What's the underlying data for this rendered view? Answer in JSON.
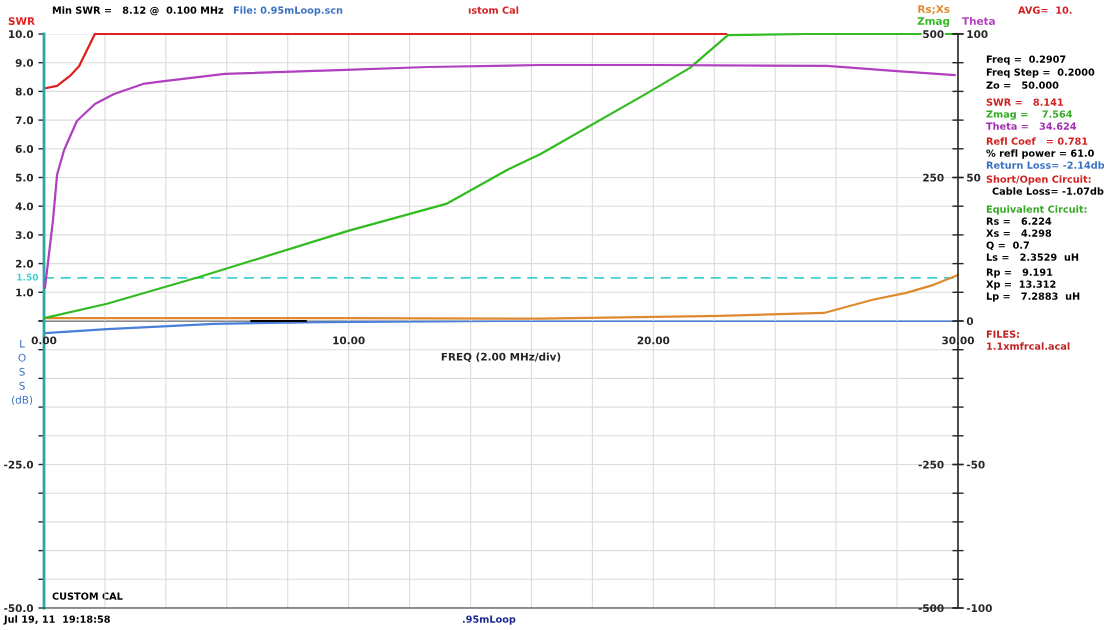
{
  "chart_data": [
    {
      "type": "line",
      "xlabel": "FREQ (2.00 MHz/div)",
      "xlim": [
        0,
        30
      ],
      "xticks": [
        {
          "value": 0,
          "label": "0.00"
        },
        {
          "value": 2,
          "label": null
        },
        {
          "value": 4,
          "label": null
        },
        {
          "value": 6,
          "label": null
        },
        {
          "value": 8,
          "label": null
        },
        {
          "value": 10,
          "label": "10.00"
        },
        {
          "value": 12,
          "label": null
        },
        {
          "value": 14,
          "label": null
        },
        {
          "value": 16,
          "label": null
        },
        {
          "value": 18,
          "label": null
        },
        {
          "value": 20,
          "label": "20.00"
        },
        {
          "value": 22,
          "label": null
        },
        {
          "value": 24,
          "label": null
        },
        {
          "value": 26,
          "label": null
        },
        {
          "value": 28,
          "label": null
        },
        {
          "value": 30,
          "label": "30.00"
        }
      ],
      "ylim": [
        0,
        10
      ],
      "yticks": [
        {
          "value": 0,
          "label": null
        },
        {
          "value": 1,
          "label": "1.0"
        },
        {
          "value": 2,
          "label": "2.0"
        },
        {
          "value": 3,
          "label": "3.0"
        },
        {
          "value": 4,
          "label": "4.0"
        },
        {
          "value": 5,
          "label": "5.0"
        },
        {
          "value": 6,
          "label": "6.0"
        },
        {
          "value": 7,
          "label": "7.0"
        },
        {
          "value": 8,
          "label": "8.0"
        },
        {
          "value": 9,
          "label": "9.0"
        },
        {
          "value": 10,
          "label": "10.0"
        }
      ],
      "y2lim": [
        0,
        500
      ],
      "y2ticks": [
        {
          "value": 50,
          "label": null
        },
        {
          "value": 100,
          "label": null
        },
        {
          "value": 150,
          "label": null
        },
        {
          "value": 200,
          "label": null
        },
        250,
        {
          "value": 300,
          "label": null
        },
        {
          "value": 350,
          "label": null
        },
        {
          "value": 400,
          "label": null
        },
        {
          "value": 450,
          "label": null
        },
        500
      ],
      "y3lim": [
        0,
        100
      ],
      "y3ticks": [
        0,
        50,
        100
      ],
      "grid": true,
      "series": [
        {
          "name": "SWR",
          "color": "#e02020",
          "axis": "y",
          "x": [
            0,
            0.43,
            0.85,
            1.15,
            1.67,
            5,
            10,
            15,
            20,
            22.4
          ],
          "values": [
            8.1,
            8.19,
            8.54,
            8.88,
            10,
            10,
            10,
            10,
            10,
            10
          ]
        },
        {
          "name": "Theta",
          "color": "#b040c0",
          "axis": "y3",
          "x": [
            0.03,
            0.29,
            0.43,
            0.66,
            1.08,
            1.67,
            2.3,
            3.25,
            3.94,
            5.94,
            9.9,
            12.6,
            16.3,
            20.0,
            25.7,
            28.0,
            29.9
          ],
          "values": [
            11.5,
            34.6,
            51,
            59.6,
            69.7,
            75.6,
            79.1,
            82.6,
            83.6,
            86.1,
            87.5,
            88.5,
            89.2,
            89.2,
            88.9,
            87.1,
            85.7
          ]
        },
        {
          "name": "Rs;Xs",
          "color": "#e08a30",
          "axis": "y2",
          "x": [
            0,
            5,
            10,
            16.3,
            22.2,
            25.6,
            27.2,
            28.3,
            29.2,
            30
          ],
          "values": [
            5,
            5,
            5,
            4,
            9,
            14,
            37,
            49,
            63,
            80
          ]
        },
        {
          "color": "#000000",
          "axis": "y2",
          "x": [
            6.8,
            8.6
          ],
          "values": [
            0,
            0
          ]
        },
        {
          "name": "Zmag",
          "color": "#33bb22",
          "axis": "y2",
          "x": [
            0,
            2.07,
            5.12,
            9.98,
            13.2,
            15.2,
            16.3,
            19.8,
            21.2,
            22.45,
            25,
            30
          ],
          "values": [
            5,
            30,
            77,
            157,
            204,
            263,
            291,
            397,
            441,
            498,
            500,
            500
          ]
        }
      ],
      "ref_lines": [
        {
          "axis": "y",
          "value": 1.5,
          "label": "1.50",
          "color": "#40d0d0",
          "line_style": "dashed"
        }
      ],
      "annotations": [
        "Min SWR =   8.12 @  0.100 MHz",
        "File: 0.95mLoop.scn",
        "ıstom Cal",
        "AVG=  10.",
        "Freq =  0.2907",
        "Freq Step =  0.2000",
        "Zo =   50.000",
        "SWR =   8.141",
        "Zmag =    7.564",
        "Theta =   34.624",
        "Refl Coef   = 0.781",
        "% refl power = 61.0",
        "Return Loss= -2.14db",
        "Short/Open Circuit:",
        "Cable Loss= -1.07db",
        "Equivalent Circuit:",
        "Rs =   6.224",
        "Xs =   4.298",
        "Q =  0.7",
        "Ls =   2.3529  uH",
        "Rp =   9.191",
        "Xp =  13.312",
        "Lp =   7.2883  uH",
        "FILES:",
        "1.1xmfrcal.acal"
      ]
    },
    {
      "type": "line",
      "ylabel": "L\nO\nS\nS\n(dB)",
      "xlim": [
        0,
        30
      ],
      "xticks": [
        0,
        2,
        4,
        6,
        8,
        10,
        12,
        14,
        16,
        18,
        20,
        22,
        24,
        26,
        28,
        30
      ],
      "tick_labels": "y",
      "ylim": [
        -50,
        0
      ],
      "yticks": [
        {
          "value": -50,
          "label": "-50.0"
        },
        {
          "value": -45,
          "label": null
        },
        {
          "value": -40,
          "label": null
        },
        {
          "value": -35,
          "label": null
        },
        {
          "value": -30,
          "label": null
        },
        {
          "value": -25,
          "label": "-25.0"
        },
        {
          "value": -20,
          "label": null
        },
        {
          "value": -15,
          "label": null
        },
        {
          "value": -10,
          "label": null
        },
        {
          "value": -5,
          "label": null
        },
        {
          "value": 0,
          "label": null
        }
      ],
      "y2lim": [
        -500,
        0
      ],
      "y2ticks": [
        -500,
        {
          "value": -450,
          "label": null
        },
        {
          "value": -400,
          "label": null
        },
        {
          "value": -350,
          "label": null
        },
        {
          "value": -300,
          "label": null
        },
        -250,
        {
          "value": -200,
          "label": null
        },
        {
          "value": -150,
          "label": null
        },
        {
          "value": -100,
          "label": null
        },
        {
          "value": -50,
          "label": null
        },
        {
          "value": 0,
          "label": null
        }
      ],
      "y3lim": [
        -100,
        0
      ],
      "y3ticks": [
        -100,
        -50
      ],
      "grid": true,
      "series": [
        {
          "color": "#4a7fd8",
          "axis": "y",
          "x": [
            0.03,
            2.07,
            5.58,
            9.1,
            15,
            20,
            25,
            30
          ],
          "values": [
            -2.1,
            -1.4,
            -0.5,
            -0.2,
            0,
            0,
            0,
            0
          ]
        }
      ],
      "annotations": [
        "CUSTOM CAL",
        "Jul 19, 11  19:18:58",
        ".95mLoop"
      ]
    }
  ]
}
